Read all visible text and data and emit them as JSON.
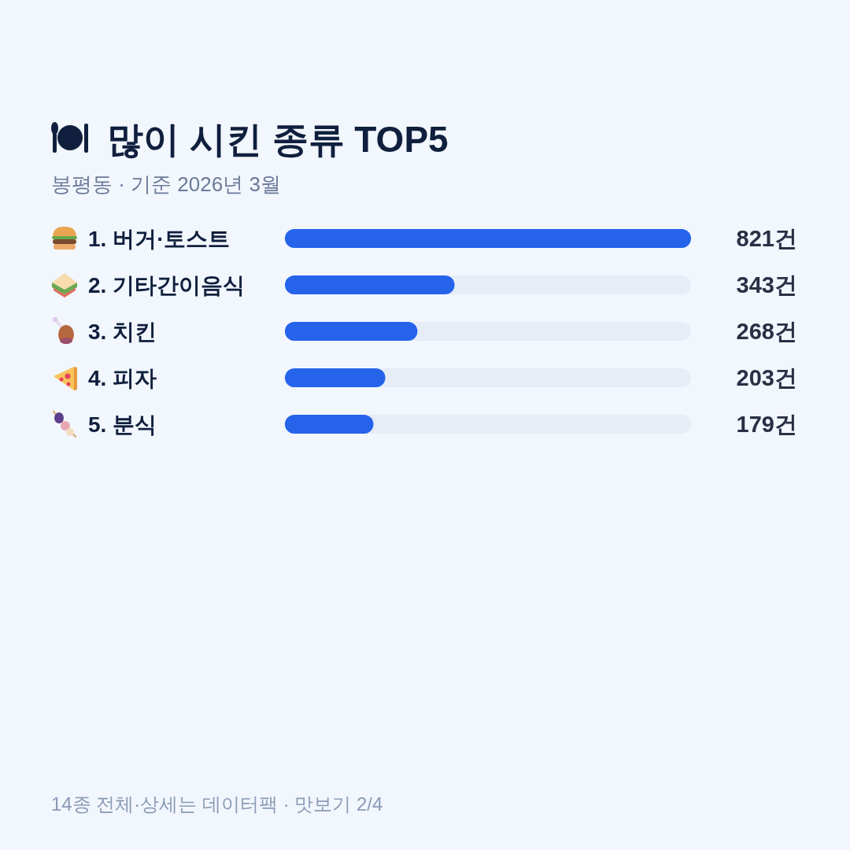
{
  "chart_data": {
    "type": "bar",
    "orientation": "horizontal",
    "title": "많이 시킨 종류 TOP5",
    "subtitle": "봉평동 · 기준 2026년 3월",
    "categories": [
      "1. 버거·토스트",
      "2. 기타간이음식",
      "3. 치킨",
      "4. 피자",
      "5. 분식"
    ],
    "values": [
      821,
      343,
      268,
      203,
      179
    ],
    "value_labels": [
      "821건",
      "343건",
      "268건",
      "203건",
      "179건"
    ],
    "color": "#2563eb",
    "xlim": [
      0,
      821
    ],
    "annotations": [
      "14종 전체·상세는 데이터팩 · 맛보기 2/4"
    ]
  }
}
